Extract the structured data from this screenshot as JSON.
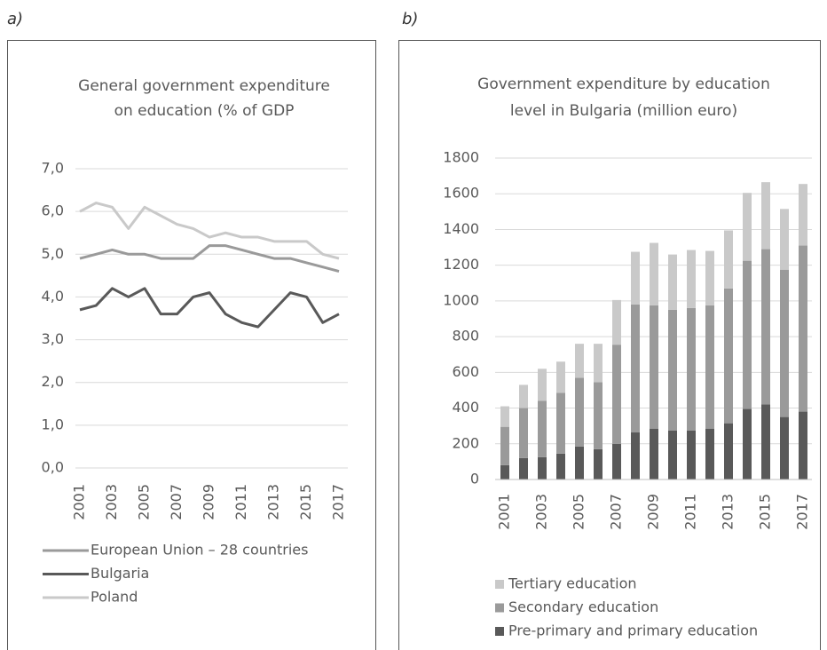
{
  "chart_data": [
    {
      "type": "line",
      "panel_label": "a)",
      "title": [
        "General government expenditure",
        "on education (% of GDP"
      ],
      "categories": [
        "2001",
        null,
        "2003",
        null,
        "2005",
        null,
        "2007",
        null,
        "2009",
        null,
        "2011",
        null,
        "2013",
        null,
        "2015",
        null,
        "2017"
      ],
      "series": [
        {
          "name": "European Union – 28 countries",
          "color": "#9a9a9a",
          "values": [
            4.9,
            5.0,
            5.1,
            5.0,
            5.0,
            4.9,
            4.9,
            4.9,
            5.2,
            5.2,
            5.1,
            5.0,
            4.9,
            4.9,
            4.8,
            4.7,
            4.6
          ]
        },
        {
          "name": "Bulgaria",
          "color": "#595959",
          "values": [
            3.7,
            3.8,
            4.2,
            4.0,
            4.2,
            3.6,
            3.6,
            4.0,
            4.1,
            3.6,
            3.4,
            3.3,
            3.7,
            4.1,
            4.0,
            3.4,
            3.6
          ]
        },
        {
          "name": "Poland",
          "color": "#c9c9c9",
          "values": [
            6.0,
            6.2,
            6.1,
            5.6,
            6.1,
            5.9,
            5.7,
            5.6,
            5.4,
            5.5,
            5.4,
            5.4,
            5.3,
            5.3,
            5.3,
            5.0,
            4.9
          ]
        }
      ],
      "ylim": [
        0,
        7
      ],
      "yticks": [
        {
          "value": 0,
          "label": "0,0"
        },
        {
          "value": 1,
          "label": "1,0"
        },
        {
          "value": 2,
          "label": "2,0"
        },
        {
          "value": 3,
          "label": "3,0"
        },
        {
          "value": 4,
          "label": "4,0"
        },
        {
          "value": 5,
          "label": "5,0"
        },
        {
          "value": 6,
          "label": "6,0"
        },
        {
          "value": 7,
          "label": "7,0"
        }
      ],
      "grid": true,
      "legend": "bottom"
    },
    {
      "type": "stacked_bar",
      "panel_label": "b)",
      "title": [
        "Government expenditure by education",
        "level in Bulgaria (million euro)"
      ],
      "categories": [
        "2001",
        null,
        "2003",
        null,
        "2005",
        null,
        "2007",
        null,
        "2009",
        null,
        "2011",
        null,
        "2013",
        null,
        "2015",
        null,
        "2017"
      ],
      "series": [
        {
          "name": "Pre-primary and primary education",
          "color": "#595959",
          "values": [
            80,
            120,
            125,
            145,
            185,
            170,
            200,
            265,
            285,
            275,
            275,
            285,
            315,
            395,
            420,
            350,
            380
          ]
        },
        {
          "name": "Secondary education",
          "color": "#9a9a9a",
          "values": [
            215,
            280,
            315,
            340,
            385,
            375,
            555,
            715,
            690,
            675,
            685,
            690,
            755,
            830,
            870,
            825,
            930
          ]
        },
        {
          "name": "Tertiary education",
          "color": "#c9c9c9",
          "values": [
            115,
            130,
            180,
            175,
            190,
            215,
            250,
            295,
            350,
            310,
            325,
            305,
            325,
            380,
            375,
            340,
            345
          ]
        }
      ],
      "ylim": [
        0,
        1800
      ],
      "yticks": [
        0,
        200,
        400,
        600,
        800,
        1000,
        1200,
        1400,
        1600,
        1800
      ],
      "grid": true,
      "legend": "bottom"
    }
  ]
}
